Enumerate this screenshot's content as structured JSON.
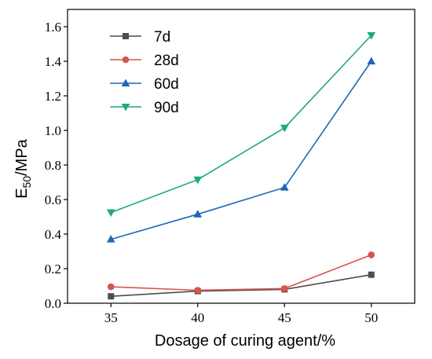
{
  "chart_data": {
    "type": "line",
    "xlabel": "Dosage of curing agent/%",
    "ylabel_main": "E",
    "ylabel_sub": "50",
    "ylabel_rest": "/MPa",
    "x": [
      35,
      40,
      45,
      50
    ],
    "x_ticks": [
      "35",
      "40",
      "45",
      "50"
    ],
    "xlim": [
      32.5,
      52.5
    ],
    "ylim": [
      0,
      1.7
    ],
    "y_ticks": [
      "0.0",
      "0.2",
      "0.4",
      "0.6",
      "0.8",
      "1.0",
      "1.2",
      "1.4",
      "1.6"
    ],
    "grid": false,
    "legend_position": "top-left",
    "series": [
      {
        "name": "7d",
        "color": "#4d4d4d",
        "marker": "square",
        "values": [
          0.04,
          0.07,
          0.08,
          0.165
        ]
      },
      {
        "name": "28d",
        "color": "#d9534f",
        "marker": "circle",
        "values": [
          0.095,
          0.075,
          0.085,
          0.28
        ]
      },
      {
        "name": "60d",
        "color": "#1f66b8",
        "marker": "triangle-up",
        "values": [
          0.37,
          0.515,
          0.67,
          1.4
        ]
      },
      {
        "name": "90d",
        "color": "#1fa87a",
        "marker": "triangle-down",
        "values": [
          0.525,
          0.715,
          1.015,
          1.55
        ]
      }
    ]
  }
}
